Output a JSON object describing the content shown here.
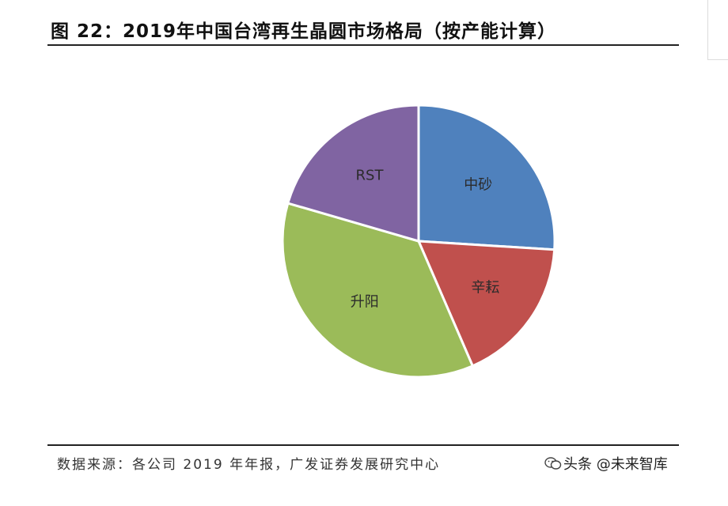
{
  "figure": {
    "title": "图 22：2019年中国台湾再生晶圆市场格局（按产能计算）",
    "source": "数据来源：各公司 2019 年年报，广发证券发展研究中心"
  },
  "watermark": {
    "text": "头条 @未来智库",
    "icon": "wechat-logo-icon"
  },
  "chart_data": {
    "type": "pie",
    "title": "2019年中国台湾再生晶圆市场格局（按产能计算）",
    "start_angle": "12 o'clock",
    "direction": "clockwise",
    "legend": "none",
    "slices": [
      {
        "label": "中砂",
        "value": 26.0,
        "color": "#4f81bd"
      },
      {
        "label": "辛耘",
        "value": 17.5,
        "color": "#c0504d"
      },
      {
        "label": "升阳",
        "value": 36.0,
        "color": "#9bbb59"
      },
      {
        "label": "RST",
        "value": 20.5,
        "color": "#8064a2"
      }
    ]
  }
}
